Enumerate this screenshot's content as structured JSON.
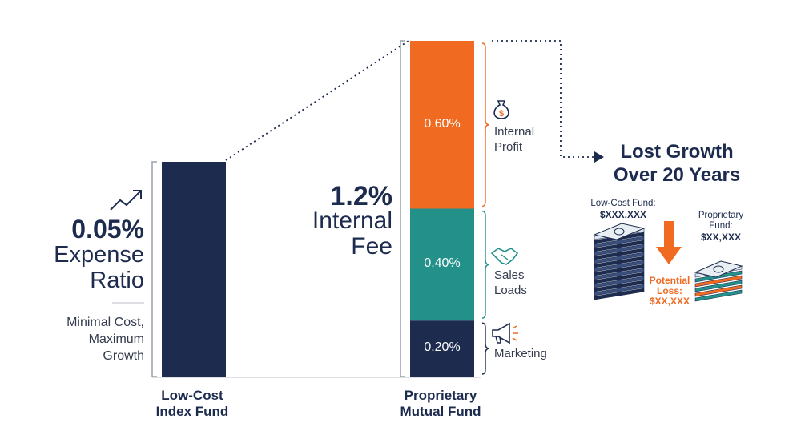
{
  "colors": {
    "navy": "#1d2b4f",
    "orange": "#f06a22",
    "teal": "#239089",
    "gray": "#c9ccd2"
  },
  "icons": [
    "trend-up-arrow-icon",
    "money-bag-icon",
    "handshake-icon",
    "megaphone-icon",
    "money-stack-icon",
    "down-arrow-icon"
  ],
  "left_callout": {
    "value": "0.05%",
    "label_line1": "Expense",
    "label_line2": "Ratio",
    "desc_line1": "Minimal Cost,",
    "desc_line2": "Maximum",
    "desc_line3": "Growth"
  },
  "mid_callout": {
    "value": "1.2%",
    "label_line1": "Internal",
    "label_line2": "Fee"
  },
  "lost_growth": {
    "title_line1": "Lost Growth",
    "title_line2": "Over 20 Years",
    "low_cost_name": "Low-Cost Fund:",
    "low_cost_value": "$XXX,XXX",
    "proprietary_name_line1": "Proprietary",
    "proprietary_name_line2": "Fund:",
    "proprietary_value": "$XX,XXX",
    "loss_line1": "Potential",
    "loss_line2": "Loss:",
    "loss_value": "$XX,XXX"
  },
  "chart_data": {
    "type": "bar",
    "title": "",
    "xlabel": "",
    "ylabel": "",
    "categories": [
      {
        "line1": "Low-Cost",
        "line2": "Index Fund"
      },
      {
        "line1": "Proprietary",
        "line2": "Mutual Fund"
      }
    ],
    "bars": [
      {
        "category_index": 0,
        "value": 0.05,
        "segments": []
      },
      {
        "category_index": 1,
        "value": 1.2,
        "segments": [
          {
            "name_line1": "Marketing",
            "name_line2": "",
            "value": 0.2,
            "label": "0.20%",
            "color": "#1d2b4f"
          },
          {
            "name_line1": "Sales",
            "name_line2": "Loads",
            "value": 0.4,
            "label": "0.40%",
            "color": "#239089"
          },
          {
            "name_line1": "Internal",
            "name_line2": "Profit",
            "value": 0.6,
            "label": "0.60%",
            "color": "#f06a22"
          }
        ]
      }
    ]
  }
}
